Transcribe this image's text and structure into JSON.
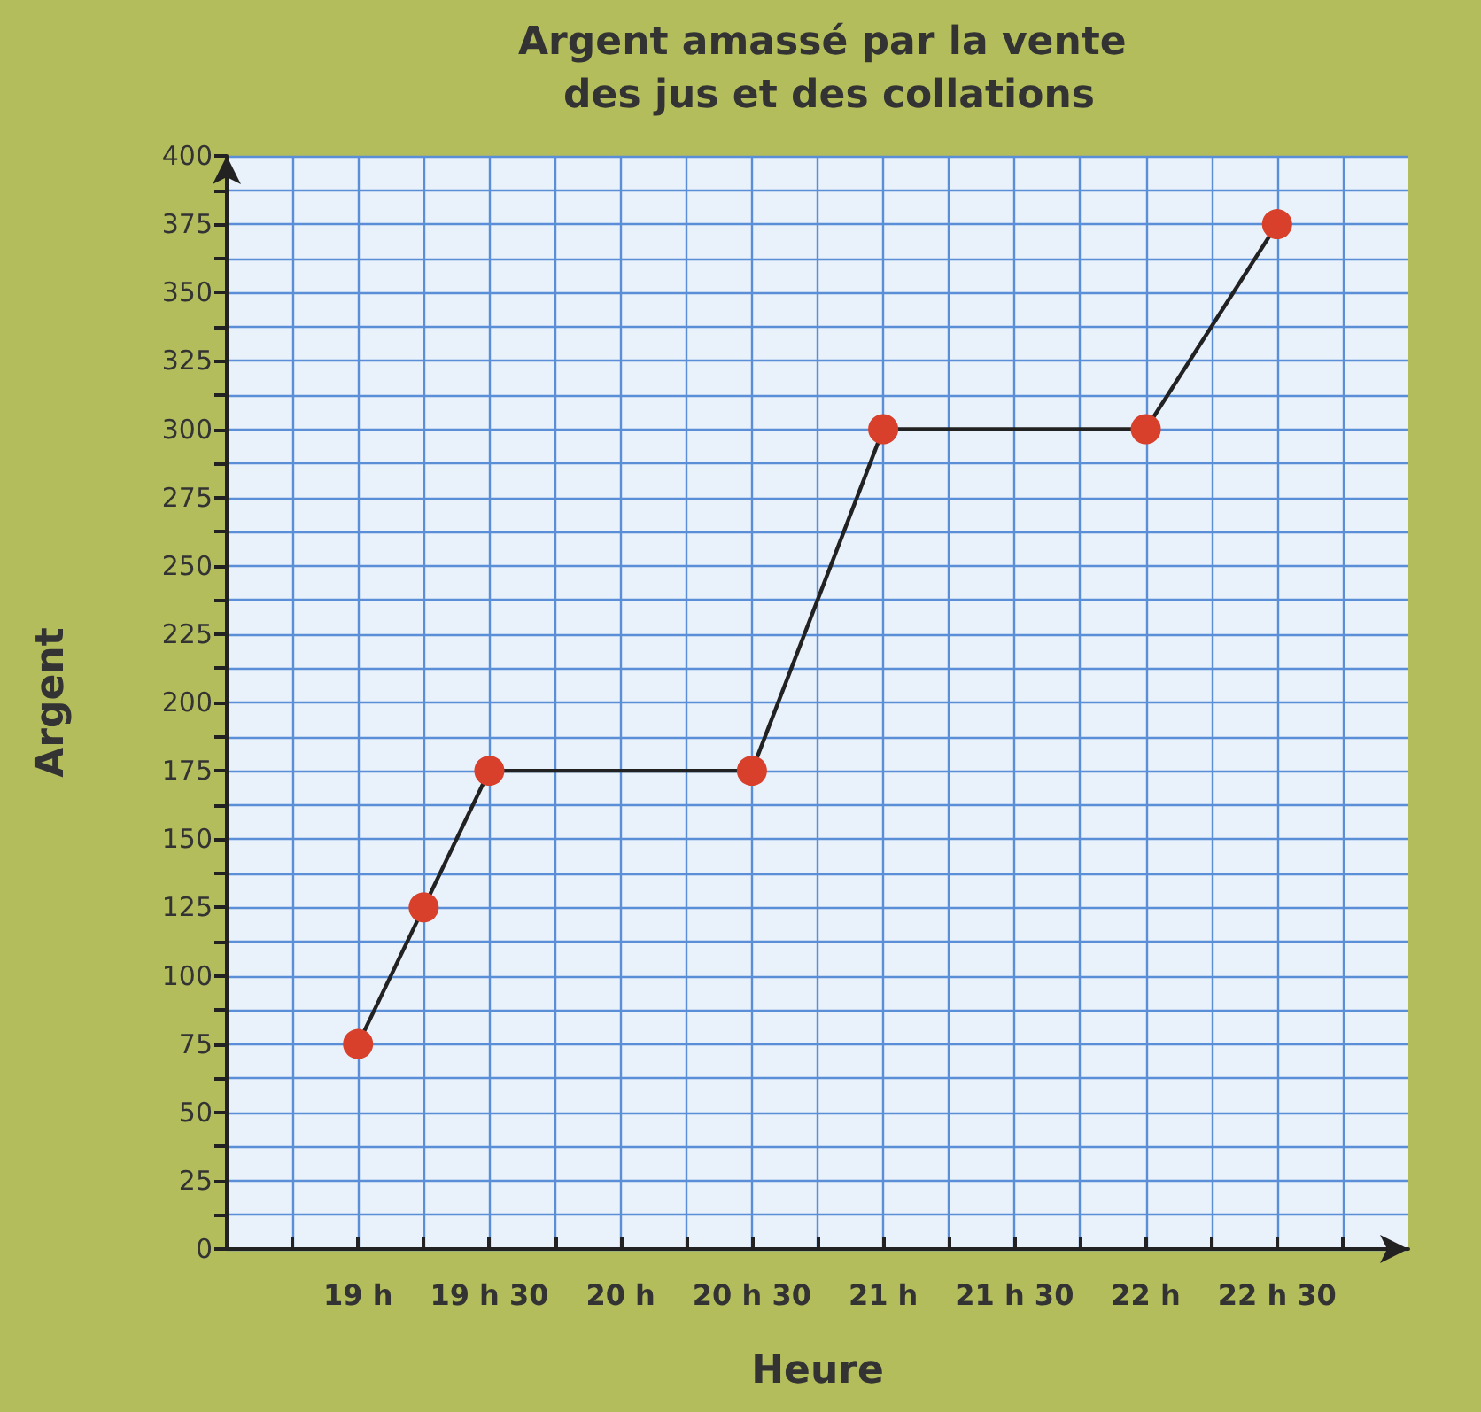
{
  "chart_data": {
    "type": "line",
    "title": "Argent amassé par la vente des jus et des collations",
    "xlabel": "Heure",
    "ylabel": "Argent",
    "x": [
      19,
      19.25,
      19.5,
      20.5,
      21,
      22,
      22.5
    ],
    "series": [
      {
        "color": "#222222",
        "values": [
          75,
          125,
          175,
          175,
          300,
          300,
          375
        ]
      }
    ],
    "xlim": [
      18.5,
      23
    ],
    "xticks": [
      {
        "value": 18.75,
        "label": null
      },
      {
        "value": 19,
        "label": "19 h"
      },
      {
        "value": 19.25,
        "label": null
      },
      {
        "value": 19.5,
        "label": "19 h 30"
      },
      {
        "value": 19.75,
        "label": null
      },
      {
        "value": 20,
        "label": "20 h"
      },
      {
        "value": 20.25,
        "label": null
      },
      {
        "value": 20.5,
        "label": "20 h 30"
      },
      {
        "value": 20.75,
        "label": null
      },
      {
        "value": 21,
        "label": "21 h"
      },
      {
        "value": 21.25,
        "label": null
      },
      {
        "value": 21.5,
        "label": "21 h 30"
      },
      {
        "value": 21.75,
        "label": null
      },
      {
        "value": 22,
        "label": "22 h"
      },
      {
        "value": 22.25,
        "label": null
      },
      {
        "value": 22.5,
        "label": "22 h 30"
      },
      {
        "value": 22.75,
        "label": null
      }
    ],
    "ylim": [
      0,
      400
    ],
    "yticks": [
      0,
      {
        "value": 12.5,
        "label": null
      },
      25,
      {
        "value": 37.5,
        "label": null
      },
      50,
      {
        "value": 62.5,
        "label": null
      },
      75,
      {
        "value": 87.5,
        "label": null
      },
      100,
      {
        "value": 112.5,
        "label": null
      },
      125,
      {
        "value": 137.5,
        "label": null
      },
      150,
      {
        "value": 162.5,
        "label": null
      },
      175,
      {
        "value": 187.5,
        "label": null
      },
      200,
      {
        "value": 212.5,
        "label": null
      },
      225,
      {
        "value": 237.5,
        "label": null
      },
      250,
      {
        "value": 262.5,
        "label": null
      },
      275,
      {
        "value": 287.5,
        "label": null
      },
      300,
      {
        "value": 312.5,
        "label": null
      },
      325,
      {
        "value": 337.5,
        "label": null
      },
      350,
      {
        "value": 362.5,
        "label": null
      },
      375,
      {
        "value": 387.5,
        "label": null
      },
      400
    ],
    "grid": true,
    "marker": "circle",
    "line_style": "solid"
  }
}
